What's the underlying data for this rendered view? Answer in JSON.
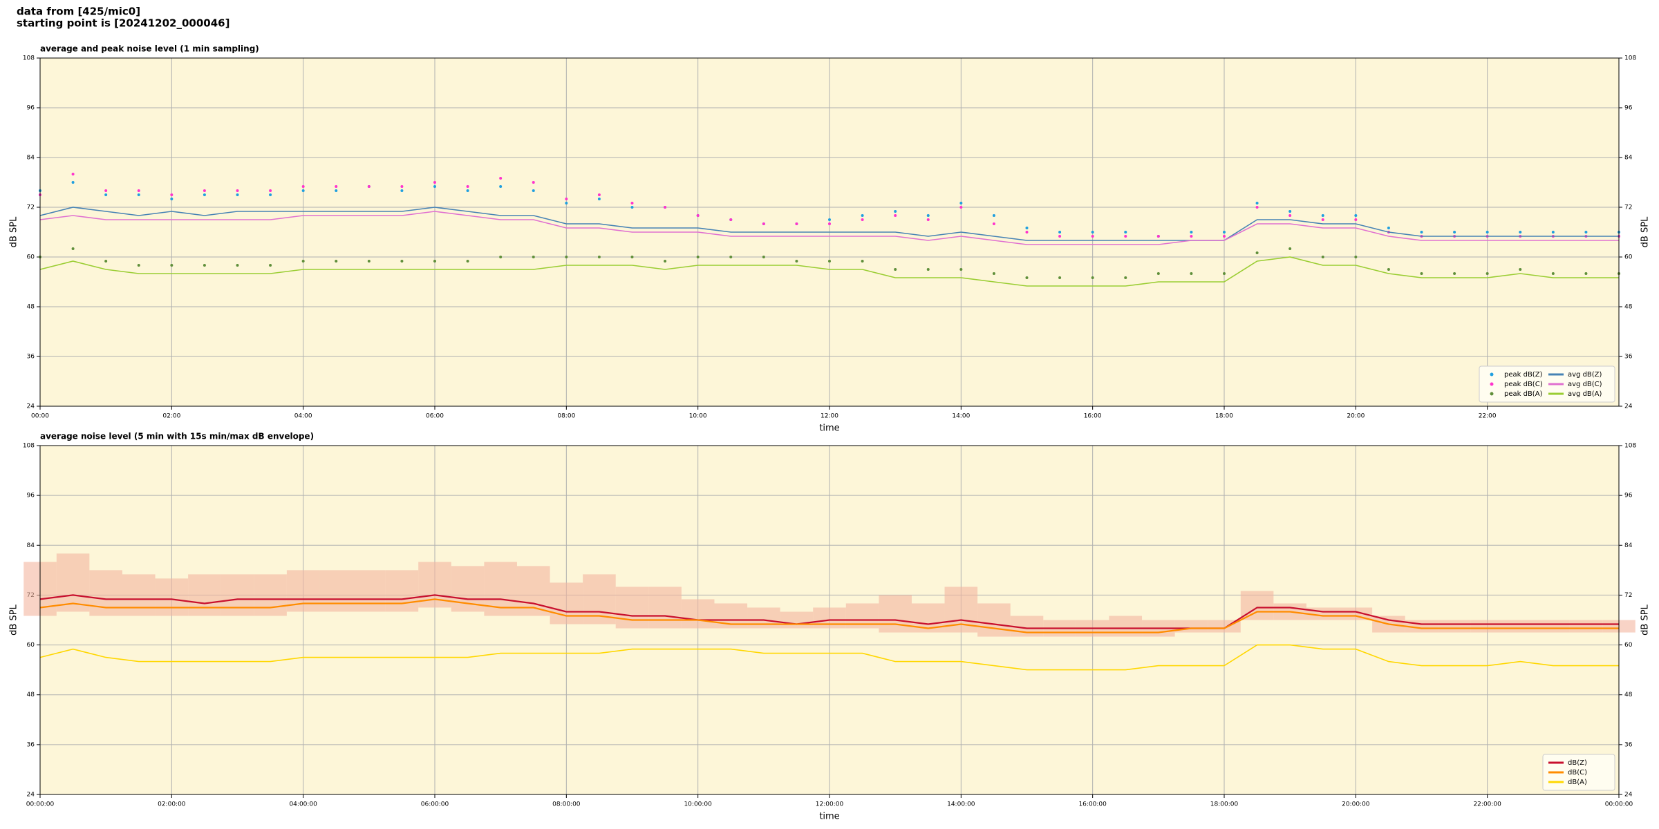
{
  "header": {
    "lines": [
      "data from [425/mic0]",
      "starting point is [20241202_000046]"
    ]
  },
  "chart_data": [
    {
      "type": "line",
      "title": "average and peak noise level (1 min sampling)",
      "xlabel": "time",
      "ylabel": "dB SPL",
      "xlim": [
        0,
        24
      ],
      "ylim": [
        24,
        108
      ],
      "yticks": [
        24,
        36,
        48,
        60,
        72,
        84,
        96,
        108
      ],
      "xticks": [
        {
          "value": 0,
          "label": "00:00"
        },
        {
          "value": 2,
          "label": "02:00"
        },
        {
          "value": 4,
          "label": "04:00"
        },
        {
          "value": 6,
          "label": "06:00"
        },
        {
          "value": 8,
          "label": "08:00"
        },
        {
          "value": 10,
          "label": "10:00"
        },
        {
          "value": 12,
          "label": "12:00"
        },
        {
          "value": 14,
          "label": "14:00"
        },
        {
          "value": 16,
          "label": "16:00"
        },
        {
          "value": 18,
          "label": "18:00"
        },
        {
          "value": 20,
          "label": "20:00"
        },
        {
          "value": 22,
          "label": "22:00"
        }
      ],
      "grid": true,
      "legend": "lower right",
      "background": "#fdf6d8",
      "x": [
        0,
        0.5,
        1,
        1.5,
        2,
        2.5,
        3,
        3.5,
        4,
        4.5,
        5,
        5.5,
        6,
        6.5,
        7,
        7.5,
        8,
        8.5,
        9,
        9.5,
        10,
        10.5,
        11,
        11.5,
        12,
        12.5,
        13,
        13.5,
        14,
        14.5,
        15,
        15.5,
        16,
        16.5,
        17,
        17.5,
        18,
        18.5,
        19,
        19.5,
        20,
        20.5,
        21,
        21.5,
        22,
        22.5,
        23,
        23.5,
        24
      ],
      "series": [
        {
          "name": "peak dB(Z)",
          "color": "#1f9fdf",
          "style": "dots",
          "values": [
            76,
            78,
            75,
            75,
            74,
            75,
            75,
            75,
            76,
            76,
            77,
            76,
            77,
            76,
            77,
            76,
            73,
            74,
            72,
            72,
            70,
            69,
            68,
            68,
            69,
            70,
            71,
            70,
            73,
            70,
            67,
            66,
            66,
            66,
            65,
            66,
            66,
            73,
            71,
            70,
            70,
            67,
            66,
            66,
            66,
            66,
            66,
            66,
            66
          ]
        },
        {
          "name": "peak dB(C)",
          "color": "#ff33cc",
          "style": "dots",
          "values": [
            75,
            80,
            76,
            76,
            75,
            76,
            76,
            76,
            77,
            77,
            77,
            77,
            78,
            77,
            79,
            78,
            74,
            75,
            73,
            72,
            70,
            69,
            68,
            68,
            68,
            69,
            70,
            69,
            72,
            68,
            66,
            65,
            65,
            65,
            65,
            65,
            65,
            72,
            70,
            69,
            69,
            66,
            65,
            65,
            65,
            65,
            65,
            65,
            65
          ]
        },
        {
          "name": "peak dB(A)",
          "color": "#5f8f3a",
          "style": "dots",
          "values": [
            60,
            62,
            59,
            58,
            58,
            58,
            58,
            58,
            59,
            59,
            59,
            59,
            59,
            59,
            60,
            60,
            60,
            60,
            60,
            59,
            60,
            60,
            60,
            59,
            59,
            59,
            57,
            57,
            57,
            56,
            55,
            55,
            55,
            55,
            56,
            56,
            56,
            61,
            62,
            60,
            60,
            57,
            56,
            56,
            56,
            57,
            56,
            56,
            56
          ]
        },
        {
          "name": "avg dB(Z)",
          "color": "#4682b4",
          "style": "line",
          "values": [
            70,
            72,
            71,
            70,
            71,
            70,
            71,
            71,
            71,
            71,
            71,
            71,
            72,
            71,
            70,
            70,
            68,
            68,
            67,
            67,
            67,
            66,
            66,
            66,
            66,
            66,
            66,
            65,
            66,
            65,
            64,
            64,
            64,
            64,
            64,
            64,
            64,
            69,
            69,
            68,
            68,
            66,
            65,
            65,
            65,
            65,
            65,
            65,
            65
          ]
        },
        {
          "name": "avg dB(C)",
          "color": "#e070d0",
          "style": "line",
          "values": [
            69,
            70,
            69,
            69,
            69,
            69,
            69,
            69,
            70,
            70,
            70,
            70,
            71,
            70,
            69,
            69,
            67,
            67,
            66,
            66,
            66,
            65,
            65,
            65,
            65,
            65,
            65,
            64,
            65,
            64,
            63,
            63,
            63,
            63,
            63,
            64,
            64,
            68,
            68,
            67,
            67,
            65,
            64,
            64,
            64,
            64,
            64,
            64,
            64
          ]
        },
        {
          "name": "avg dB(A)",
          "color": "#9acd32",
          "style": "line",
          "values": [
            57,
            59,
            57,
            56,
            56,
            56,
            56,
            56,
            57,
            57,
            57,
            57,
            57,
            57,
            57,
            57,
            58,
            58,
            58,
            57,
            58,
            58,
            58,
            58,
            57,
            57,
            55,
            55,
            55,
            54,
            53,
            53,
            53,
            53,
            54,
            54,
            54,
            59,
            60,
            58,
            58,
            56,
            55,
            55,
            55,
            56,
            55,
            55,
            55
          ]
        }
      ]
    },
    {
      "type": "line",
      "title": "average noise level (5 min with 15s min/max dB envelope)",
      "xlabel": "time",
      "ylabel": "dB SPL",
      "xlim": [
        0,
        24
      ],
      "ylim": [
        24,
        108
      ],
      "yticks": [
        24,
        36,
        48,
        60,
        72,
        84,
        96,
        108
      ],
      "xticks": [
        {
          "value": 0,
          "label": "00:00:00"
        },
        {
          "value": 2,
          "label": "02:00:00"
        },
        {
          "value": 4,
          "label": "04:00:00"
        },
        {
          "value": 6,
          "label": "06:00:00"
        },
        {
          "value": 8,
          "label": "08:00:00"
        },
        {
          "value": 10,
          "label": "10:00:00"
        },
        {
          "value": 12,
          "label": "12:00:00"
        },
        {
          "value": 14,
          "label": "14:00:00"
        },
        {
          "value": 16,
          "label": "16:00:00"
        },
        {
          "value": 18,
          "label": "18:00:00"
        },
        {
          "value": 20,
          "label": "20:00:00"
        },
        {
          "value": 22,
          "label": "22:00:00"
        },
        {
          "value": 24,
          "label": "00:00:00"
        }
      ],
      "grid": true,
      "legend": "lower right",
      "background": "#fdf6d8",
      "x": [
        0,
        0.5,
        1,
        1.5,
        2,
        2.5,
        3,
        3.5,
        4,
        4.5,
        5,
        5.5,
        6,
        6.5,
        7,
        7.5,
        8,
        8.5,
        9,
        9.5,
        10,
        10.5,
        11,
        11.5,
        12,
        12.5,
        13,
        13.5,
        14,
        14.5,
        15,
        15.5,
        16,
        16.5,
        17,
        17.5,
        18,
        18.5,
        19,
        19.5,
        20,
        20.5,
        21,
        21.5,
        22,
        22.5,
        23,
        23.5,
        24
      ],
      "band": {
        "color": "#f4b6a0",
        "low": [
          67,
          68,
          67,
          67,
          67,
          67,
          67,
          67,
          68,
          68,
          68,
          68,
          69,
          68,
          67,
          67,
          65,
          65,
          64,
          64,
          64,
          64,
          64,
          64,
          64,
          64,
          63,
          63,
          63,
          62,
          62,
          62,
          62,
          62,
          62,
          63,
          63,
          66,
          66,
          66,
          66,
          63,
          63,
          63,
          63,
          63,
          63,
          63,
          63
        ],
        "high": [
          80,
          82,
          78,
          77,
          76,
          77,
          77,
          77,
          78,
          78,
          78,
          78,
          80,
          79,
          80,
          79,
          75,
          77,
          74,
          74,
          71,
          70,
          69,
          68,
          69,
          70,
          72,
          70,
          74,
          70,
          67,
          66,
          66,
          67,
          66,
          66,
          66,
          73,
          70,
          69,
          69,
          67,
          66,
          66,
          66,
          66,
          66,
          66,
          66
        ]
      },
      "series": [
        {
          "name": "dB(Z)",
          "color": "#c8102e",
          "style": "line",
          "values": [
            71,
            72,
            71,
            71,
            71,
            70,
            71,
            71,
            71,
            71,
            71,
            71,
            72,
            71,
            71,
            70,
            68,
            68,
            67,
            67,
            66,
            66,
            66,
            65,
            66,
            66,
            66,
            65,
            66,
            65,
            64,
            64,
            64,
            64,
            64,
            64,
            64,
            69,
            69,
            68,
            68,
            66,
            65,
            65,
            65,
            65,
            65,
            65,
            65
          ]
        },
        {
          "name": "dB(C)",
          "color": "#ff8c00",
          "style": "line",
          "values": [
            69,
            70,
            69,
            69,
            69,
            69,
            69,
            69,
            70,
            70,
            70,
            70,
            71,
            70,
            69,
            69,
            67,
            67,
            66,
            66,
            66,
            65,
            65,
            65,
            65,
            65,
            65,
            64,
            65,
            64,
            63,
            63,
            63,
            63,
            63,
            64,
            64,
            68,
            68,
            67,
            67,
            65,
            64,
            64,
            64,
            64,
            64,
            64,
            64
          ]
        },
        {
          "name": "dB(A)",
          "color": "#ffd700",
          "style": "line",
          "values": [
            57,
            59,
            57,
            56,
            56,
            56,
            56,
            56,
            57,
            57,
            57,
            57,
            57,
            57,
            58,
            58,
            58,
            58,
            59,
            59,
            59,
            59,
            58,
            58,
            58,
            58,
            56,
            56,
            56,
            55,
            54,
            54,
            54,
            54,
            55,
            55,
            55,
            60,
            60,
            59,
            59,
            56,
            55,
            55,
            55,
            56,
            55,
            55,
            55
          ]
        }
      ]
    }
  ]
}
